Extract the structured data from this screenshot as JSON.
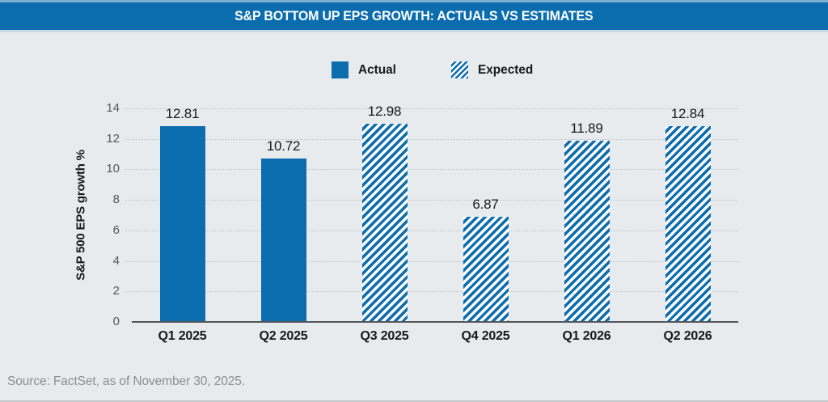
{
  "header": {
    "title": "S&P BOTTOM UP EPS GROWTH: ACTUALS VS ESTIMATES"
  },
  "legend": {
    "items": [
      {
        "label": "Actual",
        "pattern": "solid"
      },
      {
        "label": "Expected",
        "pattern": "striped"
      }
    ]
  },
  "chart_data": {
    "type": "bar",
    "title": "S&P BOTTOM UP EPS GROWTH: ACTUALS VS ESTIMATES",
    "categories": [
      "Q1 2025",
      "Q2 2025",
      "Q3 2025",
      "Q4 2025",
      "Q1 2026",
      "Q2 2026"
    ],
    "series": [
      {
        "name": "Actual",
        "pattern": "solid",
        "values": [
          12.81,
          10.72,
          null,
          null,
          null,
          null
        ]
      },
      {
        "name": "Expected",
        "pattern": "striped",
        "values": [
          null,
          null,
          12.98,
          6.87,
          11.89,
          12.84
        ]
      }
    ],
    "bars": [
      {
        "category": "Q1 2025",
        "value": 12.81,
        "label": "12.81",
        "series": "Actual",
        "pattern": "solid"
      },
      {
        "category": "Q2 2025",
        "value": 10.72,
        "label": "10.72",
        "series": "Actual",
        "pattern": "solid"
      },
      {
        "category": "Q3 2025",
        "value": 12.98,
        "label": "12.98",
        "series": "Expected",
        "pattern": "striped"
      },
      {
        "category": "Q4 2025",
        "value": 6.87,
        "label": "6.87",
        "series": "Expected",
        "pattern": "striped"
      },
      {
        "category": "Q1 2026",
        "value": 11.89,
        "label": "11.89",
        "series": "Expected",
        "pattern": "striped"
      },
      {
        "category": "Q2 2026",
        "value": 12.84,
        "label": "12.84",
        "series": "Expected",
        "pattern": "striped"
      }
    ],
    "xlabel": "",
    "ylabel": "S&P 500 EPS growth %",
    "ylim": [
      0,
      14
    ],
    "yticks": [
      0,
      2,
      4,
      6,
      8,
      10,
      12,
      14
    ],
    "grid": "horizontal-dotted",
    "legend_position": "top-center"
  },
  "footer": {
    "source": "Source: FactSet, as of November 30, 2025."
  },
  "colors": {
    "accent_blue": "#0b6cae",
    "title_bar_background": "#0b6cae",
    "title_text": "#ffffff",
    "page_background": "#e8ebee",
    "gridline": "#bfc3c8",
    "axis_line": "#53565a",
    "label_text": "#17191b",
    "tick_text": "#55585c",
    "source_text": "#8a8e91"
  }
}
